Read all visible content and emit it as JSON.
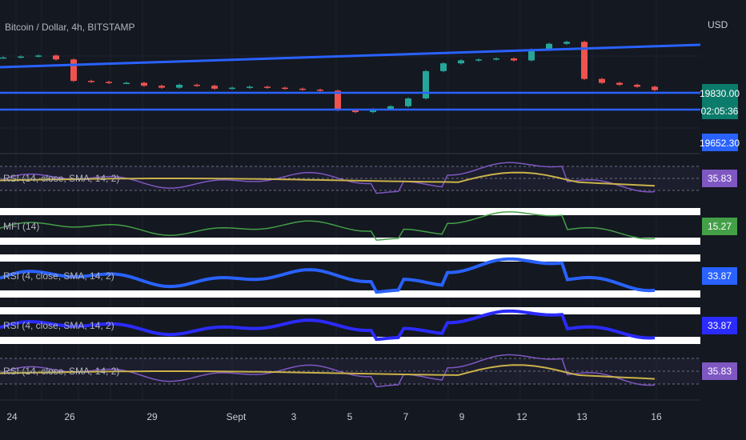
{
  "header": {
    "symbol_title": "Bitcoin / Dollar, 4h, BITSTAMP",
    "currency": "USD"
  },
  "price_scale": {
    "last_price": "19830.00",
    "countdown": "02:05:36",
    "level_price": "19652.30",
    "colors": {
      "last": "#0b7b6b",
      "countdown": "#0b7b6b",
      "level": "#2962ff"
    }
  },
  "panes": [
    {
      "label": "RSI (14, close, SMA, 14, 2)",
      "value": "35.83",
      "badge_color": "#7e57c2",
      "line_color": "#7e57c2",
      "smooth_color": "#c9b24a"
    },
    {
      "label": "MFI (14)",
      "value": "15.27",
      "badge_color": "#43a047",
      "line_color": "#43a047"
    },
    {
      "label": "RSI (4, close, SMA, 14, 2)",
      "value": "33.87",
      "badge_color": "#2962ff",
      "line_color": "#2962ff"
    },
    {
      "label": "RSI (4, close, SMA, 14, 2)",
      "value": "33.87",
      "badge_color": "#2b2bff",
      "line_color": "#2b2bff"
    },
    {
      "label": "RSI (14, close, SMA, 14, 2)",
      "value": "35.83",
      "badge_color": "#7e57c2",
      "line_color": "#7e57c2",
      "smooth_color": "#c9b24a"
    }
  ],
  "time_axis": [
    "24",
    "26",
    "29",
    "Sept",
    "3",
    "5",
    "7",
    "9",
    "12",
    "13",
    "16"
  ],
  "colors": {
    "up": "#26a69a",
    "down": "#ef5350",
    "trendline": "#2962ff",
    "background": "#141821"
  },
  "chart_data": {
    "type": "candlestick",
    "series_name": "Bitcoin / Dollar, 4h, BITSTAMP",
    "x_labels": [
      "24",
      "26",
      "29",
      "Sept",
      "3",
      "5",
      "7",
      "9",
      "12",
      "13",
      "16"
    ],
    "close_approx": [
      21500,
      21550,
      21600,
      21400,
      20300,
      20250,
      20200,
      20200,
      20050,
      19950,
      20100,
      20050,
      19900,
      19950,
      20000,
      19950,
      19900,
      19850,
      19800,
      18800,
      18700,
      18850,
      19000,
      19400,
      20800,
      21200,
      21350,
      21400,
      21450,
      21350,
      21900,
      22200,
      22300,
      20400,
      20200,
      20100,
      20000,
      19830
    ],
    "horizontal_levels": [
      19830.0,
      19652.3
    ],
    "last_price": 19830.0,
    "indicators": [
      {
        "name": "RSI (14, close, SMA, 14, 2)",
        "last": 35.83
      },
      {
        "name": "MFI (14)",
        "last": 15.27
      },
      {
        "name": "RSI (4, close, SMA, 14, 2)",
        "last": 33.87
      },
      {
        "name": "RSI (4, close, SMA, 14, 2)",
        "last": 33.87
      },
      {
        "name": "RSI (14, close, SMA, 14, 2)",
        "last": 35.83
      }
    ]
  }
}
